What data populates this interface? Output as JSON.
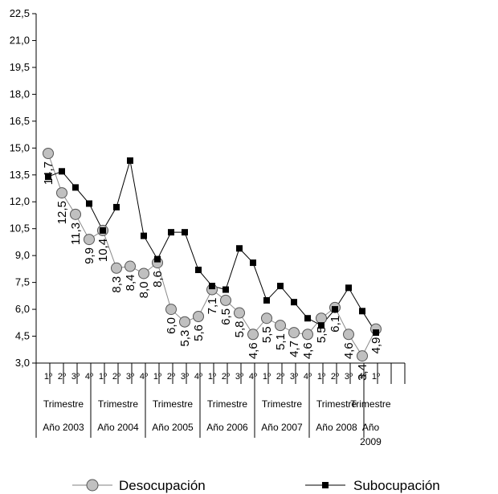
{
  "chart_data": {
    "type": "line",
    "title": "",
    "xlabel": "",
    "ylabel": "",
    "ylim": [
      3.0,
      22.5
    ],
    "yticks": [
      "3,0",
      "4,5",
      "6,0",
      "7,5",
      "9,0",
      "10,5",
      "12,0",
      "13,5",
      "15,0",
      "16,5",
      "18,0",
      "19,5",
      "21,0",
      "22,5"
    ],
    "quarters": [
      "1º",
      "2º",
      "3º",
      "4º",
      "1º",
      "2º",
      "3º",
      "4º",
      "1º",
      "2º",
      "3º",
      "4º",
      "1º",
      "2º",
      "3º",
      "4º",
      "1º",
      "2º",
      "3º",
      "4º",
      "1º",
      "2º",
      "3º",
      "4º",
      "1º"
    ],
    "groups": [
      {
        "trimestre": "Trimestre",
        "year": "Año 2003"
      },
      {
        "trimestre": "Trimestre",
        "year": "Año 2004"
      },
      {
        "trimestre": "Trimestre",
        "year": "Año 2005"
      },
      {
        "trimestre": "Trimestre",
        "year": "Año 2006"
      },
      {
        "trimestre": "Trimestre",
        "year": "Año 2007"
      },
      {
        "trimestre": "Trimestre",
        "year": "Año 2008"
      },
      {
        "trimestre": "Trimestre",
        "year_lines": [
          "Año",
          "2009"
        ]
      }
    ],
    "series": [
      {
        "name": "Desocupación",
        "color": "#c0c0c0",
        "marker": "circle",
        "values": [
          14.7,
          12.5,
          11.3,
          9.9,
          10.4,
          8.3,
          8.4,
          8.0,
          8.6,
          6.0,
          5.3,
          5.6,
          7.1,
          6.5,
          5.8,
          4.6,
          5.5,
          5.1,
          4.7,
          4.6,
          5.5,
          6.1,
          4.6,
          3.4,
          4.9
        ],
        "labels": [
          "14,7",
          "12,5",
          "11,3",
          "9,9",
          "10,4",
          "8,3",
          "8,4",
          "8,0",
          "8,6",
          "6,0",
          "5,3",
          "5,6",
          "7,1",
          "6,5",
          "5,8",
          "4,6",
          "5,5",
          "5,1",
          "4,7",
          "4,6",
          "5,5",
          "6,1",
          "4,6",
          "3,4",
          "4,9"
        ]
      },
      {
        "name": "Subocupación",
        "color": "#000000",
        "marker": "square",
        "values": [
          13.4,
          13.7,
          12.8,
          11.9,
          10.4,
          11.7,
          14.3,
          10.1,
          8.8,
          10.3,
          10.3,
          8.2,
          7.3,
          7.1,
          9.4,
          8.6,
          6.5,
          7.3,
          6.4,
          5.5,
          5.1,
          6.0,
          7.2,
          5.9,
          4.7
        ]
      }
    ],
    "legend": "bottom"
  }
}
